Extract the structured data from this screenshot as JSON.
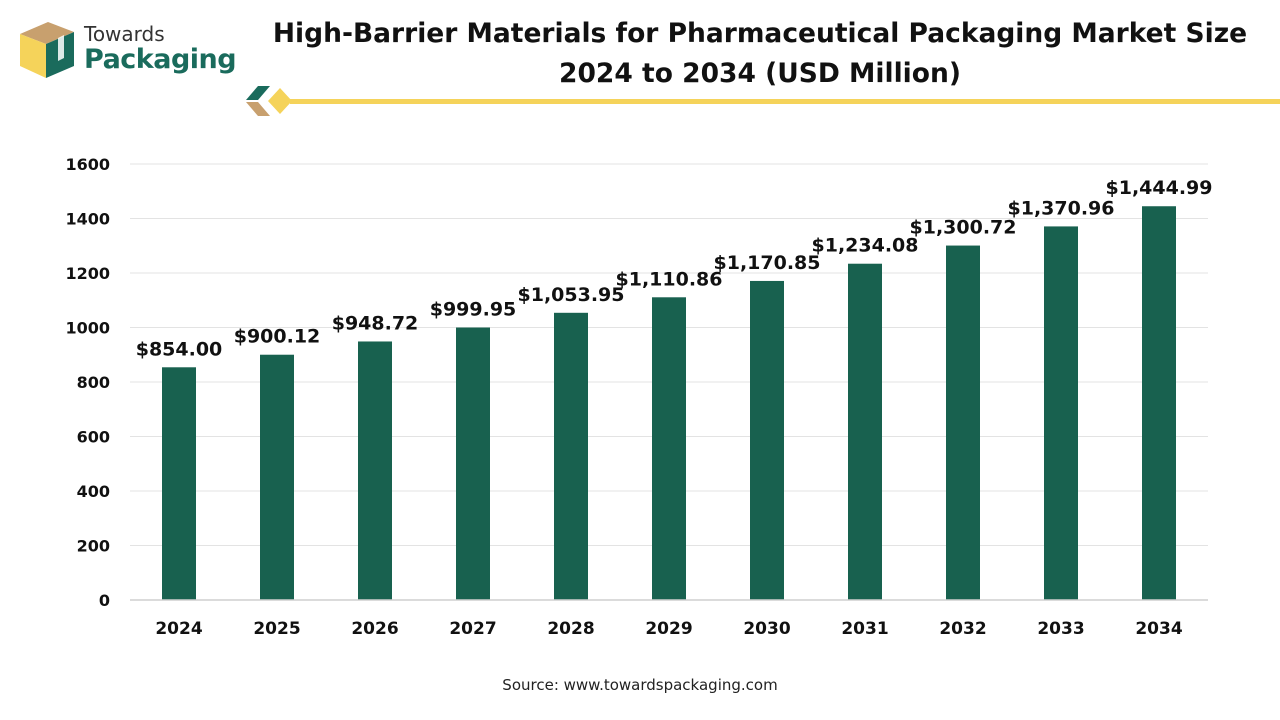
{
  "brand": {
    "line1": "Towards",
    "line2": "Packaging",
    "teal": "#1a6b5c",
    "gold": "#f5d35a",
    "tan": "#c8a06e"
  },
  "header": {
    "title_line1": "High-Barrier Materials for Pharmaceutical Packaging Market Size",
    "title_line2": "2024 to 2034 (USD Million)"
  },
  "chart_data": {
    "type": "bar",
    "title": "High-Barrier Materials for Pharmaceutical Packaging Market Size 2024 to 2034 (USD Million)",
    "xlabel": "",
    "ylabel": "",
    "categories": [
      "2024",
      "2025",
      "2026",
      "2027",
      "2028",
      "2029",
      "2030",
      "2031",
      "2032",
      "2033",
      "2034"
    ],
    "values": [
      854.0,
      900.12,
      948.72,
      999.95,
      1053.95,
      1110.86,
      1170.85,
      1234.08,
      1300.72,
      1370.96,
      1444.99
    ],
    "labels": [
      "$854.00",
      "$900.12",
      "$948.72",
      "$999.95",
      "$1,053.95",
      "$1,110.86",
      "$1,170.85",
      "$1,234.08",
      "$1,300.72",
      "$1,370.96",
      "$1,444.99"
    ],
    "yticks": [
      0,
      200,
      400,
      600,
      800,
      1000,
      1200,
      1400,
      1600
    ],
    "ylim": [
      0,
      1600
    ],
    "grid": true,
    "legend": "none",
    "bar_color": "#18614f"
  },
  "footer": {
    "source": "Source: www.towardspackaging.com"
  }
}
